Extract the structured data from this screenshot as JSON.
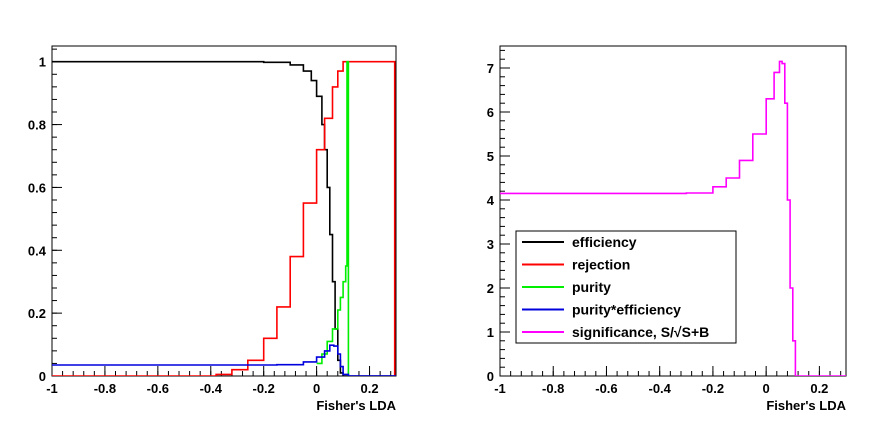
{
  "chart_data": [
    {
      "type": "line",
      "xlabel": "Fisher's LDA",
      "ylabel": "",
      "xlim": [
        -1,
        0.3
      ],
      "ylim": [
        0,
        1.05
      ],
      "xticks": [
        -1,
        -0.8,
        -0.6,
        -0.4,
        -0.2,
        0,
        0.2
      ],
      "xtick_labels": [
        "-1",
        "-0.8",
        "-0.6",
        "-0.4",
        "-0.2",
        "0",
        "0.2"
      ],
      "yticks": [
        0,
        0.2,
        0.4,
        0.6,
        0.8,
        1
      ],
      "ytick_labels": [
        "0",
        "0.2",
        "0.4",
        "0.6",
        "0.8",
        "1"
      ],
      "series": [
        {
          "name": "efficiency",
          "color": "#000000",
          "points": [
            [
              -1,
              1
            ],
            [
              -0.5,
              1
            ],
            [
              -0.2,
              0.998
            ],
            [
              -0.1,
              0.99
            ],
            [
              -0.05,
              0.97
            ],
            [
              -0.02,
              0.94
            ],
            [
              0,
              0.89
            ],
            [
              0.02,
              0.8
            ],
            [
              0.03,
              0.72
            ],
            [
              0.04,
              0.6
            ],
            [
              0.05,
              0.45
            ],
            [
              0.06,
              0.3
            ],
            [
              0.07,
              0.15
            ],
            [
              0.08,
              0.05
            ],
            [
              0.09,
              0.01
            ],
            [
              0.1,
              0
            ],
            [
              0.3,
              0
            ]
          ]
        },
        {
          "name": "rejection",
          "color": "#ff0000",
          "points": [
            [
              -1,
              0
            ],
            [
              -0.45,
              0
            ],
            [
              -0.38,
              0.005
            ],
            [
              -0.32,
              0.02
            ],
            [
              -0.26,
              0.05
            ],
            [
              -0.2,
              0.12
            ],
            [
              -0.15,
              0.22
            ],
            [
              -0.1,
              0.38
            ],
            [
              -0.05,
              0.55
            ],
            [
              0,
              0.72
            ],
            [
              0.03,
              0.82
            ],
            [
              0.06,
              0.92
            ],
            [
              0.08,
              0.97
            ],
            [
              0.1,
              1
            ],
            [
              0.295,
              1
            ],
            [
              0.295,
              0
            ]
          ]
        },
        {
          "name": "purity",
          "color": "#00ee00",
          "points": [
            [
              0,
              0.04
            ],
            [
              0.02,
              0.07
            ],
            [
              0.04,
              0.11
            ],
            [
              0.06,
              0.15
            ],
            [
              0.08,
              0.21
            ],
            [
              0.09,
              0.25
            ],
            [
              0.1,
              0.3
            ],
            [
              0.11,
              0.35
            ],
            [
              0.115,
              0.42
            ],
            [
              0.115,
              1
            ],
            [
              0.12,
              1
            ],
            [
              0.12,
              0
            ]
          ]
        },
        {
          "name": "purity*efficiency",
          "color": "#0000dd",
          "points": [
            [
              -1,
              0.035
            ],
            [
              -0.3,
              0.035
            ],
            [
              -0.15,
              0.036
            ],
            [
              -0.05,
              0.045
            ],
            [
              0,
              0.06
            ],
            [
              0.03,
              0.08
            ],
            [
              0.05,
              0.098
            ],
            [
              0.065,
              0.095
            ],
            [
              0.08,
              0.07
            ],
            [
              0.09,
              0.03
            ],
            [
              0.1,
              0.005
            ],
            [
              0.12,
              0
            ],
            [
              0.3,
              0
            ]
          ]
        }
      ]
    },
    {
      "type": "line",
      "xlabel": "Fisher's LDA",
      "ylabel": "",
      "xlim": [
        -1,
        0.3
      ],
      "ylim": [
        0,
        7.5
      ],
      "xticks": [
        -1,
        -0.8,
        -0.6,
        -0.4,
        -0.2,
        0,
        0.2
      ],
      "xtick_labels": [
        "-1",
        "-0.8",
        "-0.6",
        "-0.4",
        "-0.2",
        "0",
        "0.2"
      ],
      "yticks": [
        0,
        1,
        2,
        3,
        4,
        5,
        6,
        7
      ],
      "ytick_labels": [
        "0",
        "1",
        "2",
        "3",
        "4",
        "5",
        "6",
        "7"
      ],
      "series": [
        {
          "name": "significance, S/√S+B",
          "color": "#ff00ff",
          "points": [
            [
              -1,
              4.15
            ],
            [
              -0.4,
              4.15
            ],
            [
              -0.3,
              4.16
            ],
            [
              -0.2,
              4.3
            ],
            [
              -0.15,
              4.5
            ],
            [
              -0.1,
              4.9
            ],
            [
              -0.05,
              5.5
            ],
            [
              0,
              6.3
            ],
            [
              0.03,
              6.9
            ],
            [
              0.05,
              7.15
            ],
            [
              0.06,
              7.1
            ],
            [
              0.07,
              6.2
            ],
            [
              0.08,
              4.0
            ],
            [
              0.09,
              2.0
            ],
            [
              0.1,
              0.8
            ],
            [
              0.11,
              0
            ],
            [
              0.3,
              0
            ]
          ]
        }
      ],
      "legend": {
        "position": "lower-left",
        "entries": [
          {
            "label": "efficiency",
            "color": "#000000"
          },
          {
            "label": "rejection",
            "color": "#ff0000"
          },
          {
            "label": "purity",
            "color": "#00ee00"
          },
          {
            "label": "purity*efficiency",
            "color": "#0000dd"
          },
          {
            "label": "significance, S/√S+B",
            "color": "#ff00ff"
          }
        ]
      }
    }
  ]
}
